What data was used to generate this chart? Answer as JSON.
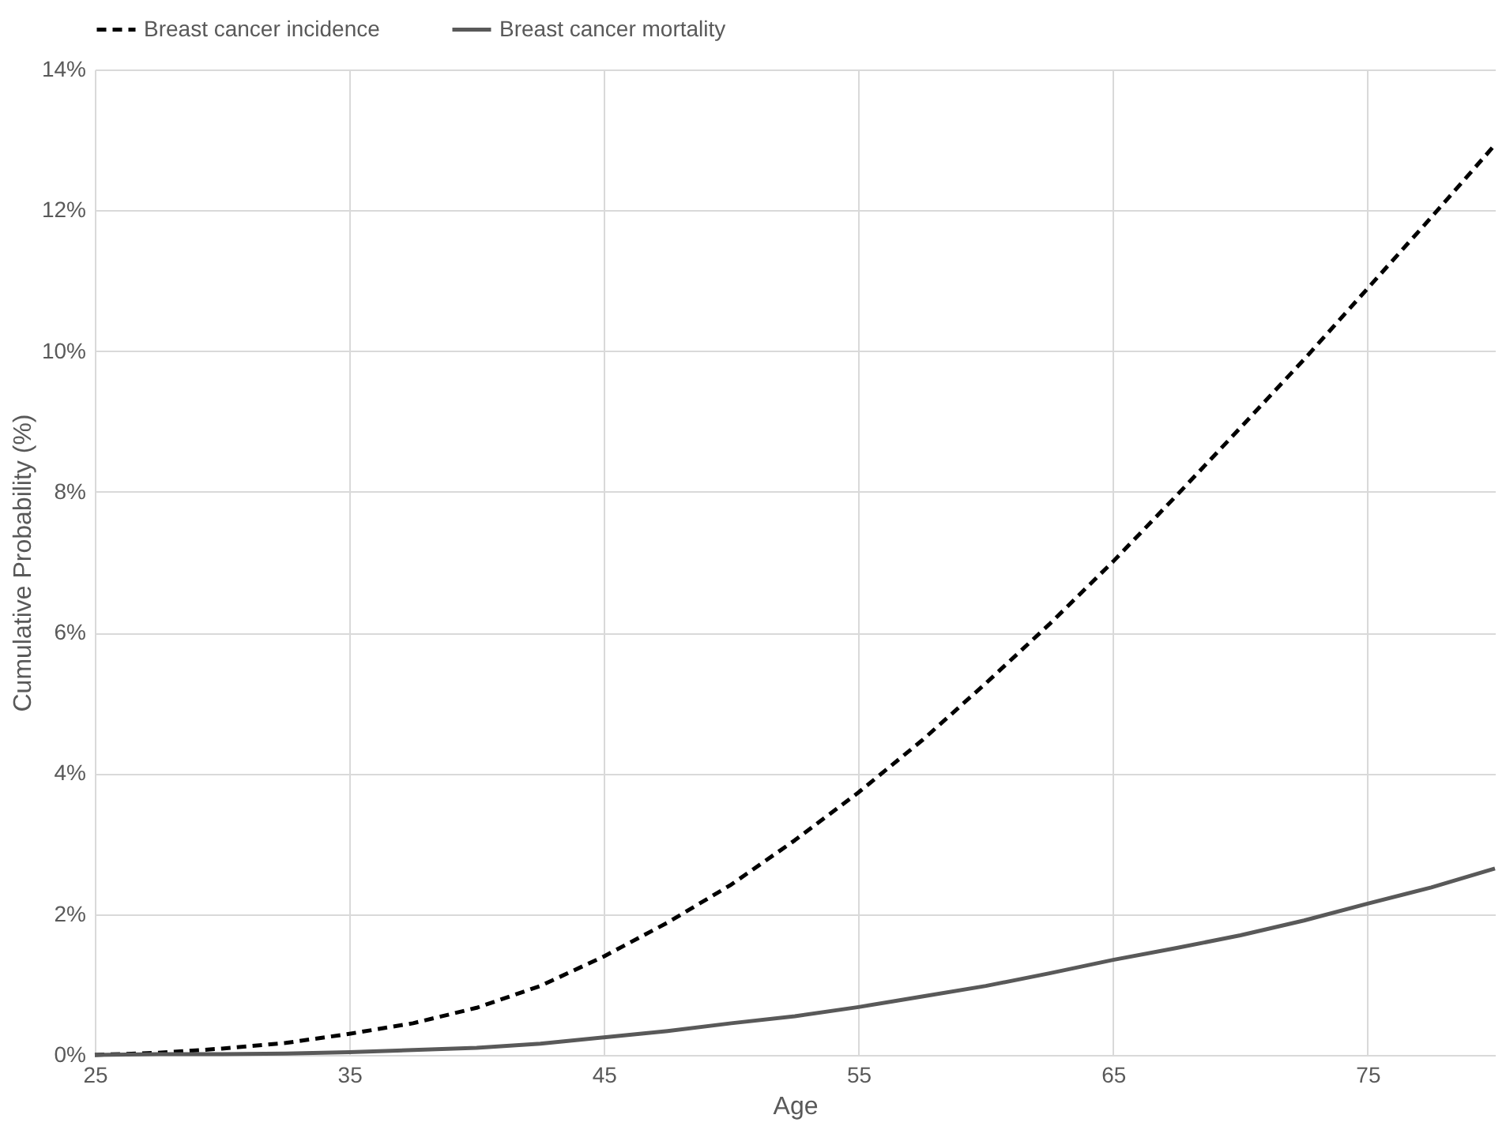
{
  "chart_data": {
    "type": "line",
    "xlabel": "Age",
    "ylabel": "Cumulative Probability (%)",
    "x": [
      25,
      27.5,
      30,
      32.5,
      35,
      37.5,
      40,
      42.5,
      45,
      47.5,
      50,
      52.5,
      55,
      57.5,
      60,
      62.5,
      65,
      67.5,
      70,
      72.5,
      75,
      77.5,
      80
    ],
    "series": [
      {
        "name": "Breast cancer incidence",
        "color": "#000000",
        "line_style": "dashed",
        "values": [
          0,
          0.03,
          0.09,
          0.17,
          0.3,
          0.45,
          0.67,
          0.98,
          1.4,
          1.88,
          2.42,
          3.05,
          3.73,
          4.47,
          5.28,
          6.12,
          7.01,
          7.95,
          8.91,
          9.88,
          10.89,
          11.9,
          12.93
        ]
      },
      {
        "name": "Breast cancer mortality",
        "color": "#595959",
        "line_style": "solid",
        "values": [
          0,
          0.01,
          0.01,
          0.02,
          0.04,
          0.07,
          0.1,
          0.16,
          0.25,
          0.34,
          0.45,
          0.55,
          0.68,
          0.83,
          0.98,
          1.16,
          1.35,
          1.52,
          1.7,
          1.91,
          2.15,
          2.38,
          2.65
        ]
      }
    ],
    "xlim": [
      25,
      80
    ],
    "xticks": [
      25,
      35,
      45,
      55,
      65,
      75
    ],
    "ylim": [
      0,
      14
    ],
    "yticks": [
      {
        "value": 0,
        "label": "0%"
      },
      {
        "value": 2,
        "label": "2%"
      },
      {
        "value": 4,
        "label": "4%"
      },
      {
        "value": 6,
        "label": "6%"
      },
      {
        "value": 8,
        "label": "8%"
      },
      {
        "value": 10,
        "label": "10%"
      },
      {
        "value": 12,
        "label": "12%"
      },
      {
        "value": 14,
        "label": "14%"
      }
    ],
    "grid": true,
    "legend": "top"
  }
}
